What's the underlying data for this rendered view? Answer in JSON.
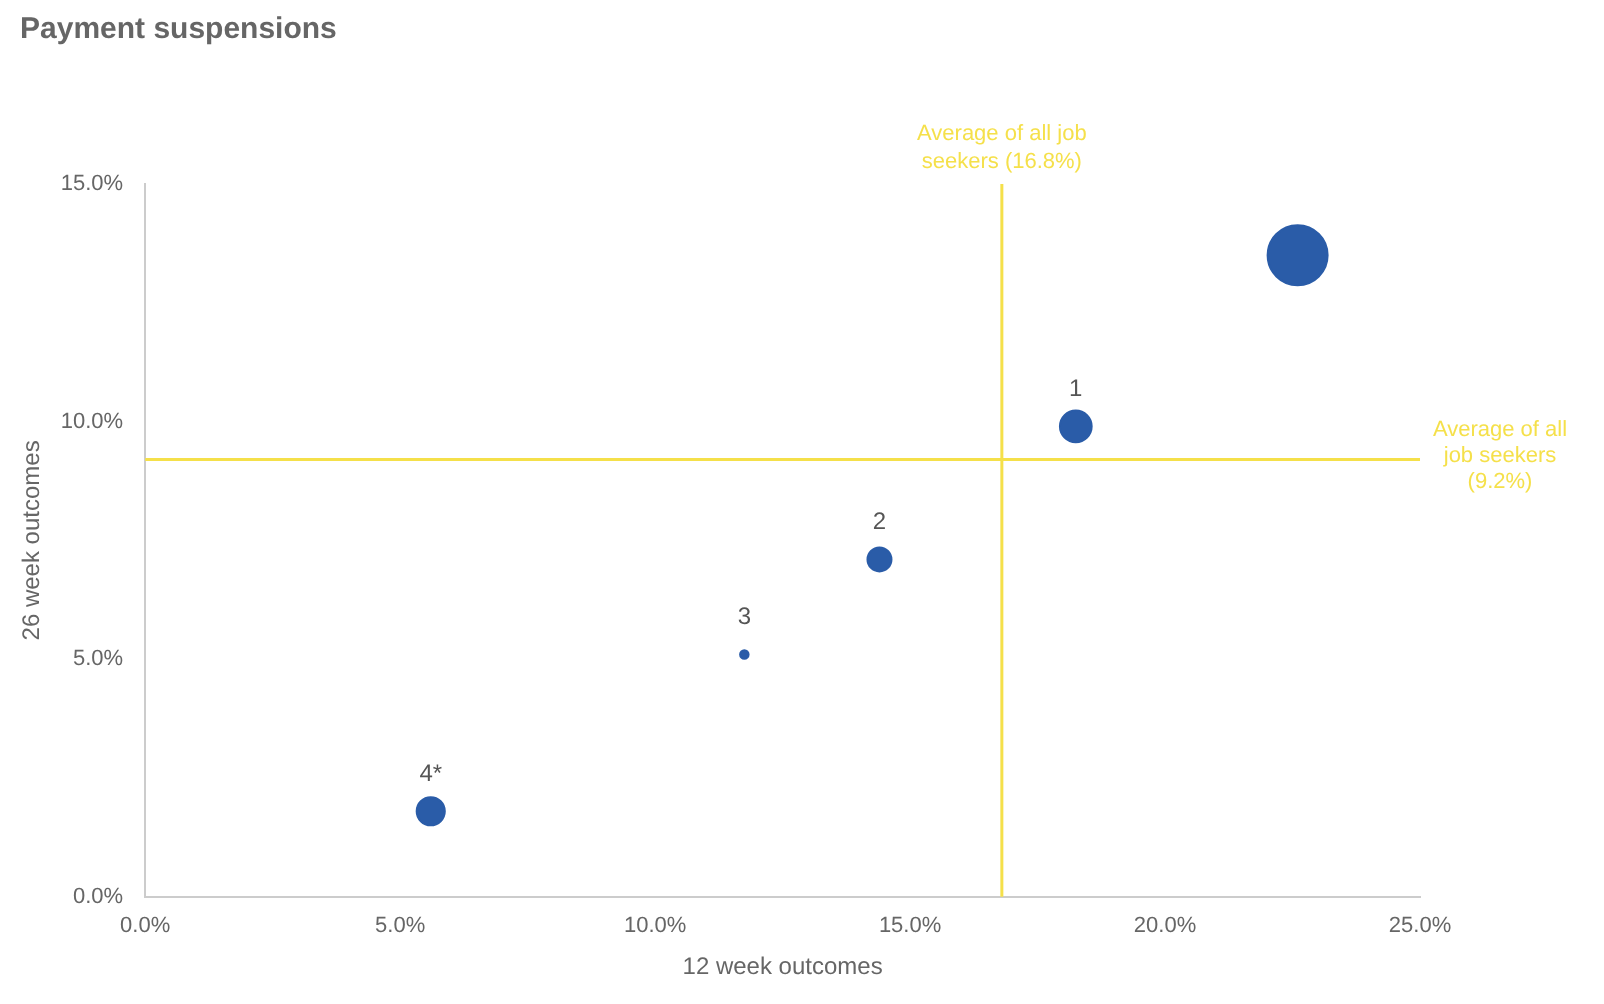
{
  "chart_data": {
    "type": "bubble",
    "title": "Payment suspensions",
    "xlabel": "12 week outcomes",
    "ylabel": "26 week outcomes",
    "x": [
      22.6,
      18.25,
      14.4,
      11.75,
      5.6
    ],
    "series": [
      {
        "color": "#2a5ca8",
        "values": [
          13.5,
          9.9,
          7.1,
          5.1,
          1.8
        ],
        "sizes": [
          1,
          0.28,
          0.16,
          0.02,
          0.22
        ]
      }
    ],
    "xlim": [
      0,
      25
    ],
    "xticks": [
      {
        "value": 0,
        "label": "0.0%"
      },
      {
        "value": 5,
        "label": "5.0%"
      },
      {
        "value": 10,
        "label": "10.0%"
      },
      {
        "value": 15,
        "label": "15.0%"
      },
      {
        "value": 20,
        "label": "20.0%"
      },
      {
        "value": 25,
        "label": "25.0%"
      }
    ],
    "ylim": [
      0,
      15
    ],
    "yticks": [
      {
        "value": 0,
        "label": "0.0%"
      },
      {
        "value": 5,
        "label": "5.0%"
      },
      {
        "value": 10,
        "label": "10.0%"
      },
      {
        "value": 15,
        "label": "15.0%"
      }
    ],
    "ref_lines": [
      {
        "axis": "x",
        "value": 16.8,
        "label": "Average of all job seekers (16.8%)",
        "color": "#f5e04a"
      },
      {
        "axis": "y",
        "value": 9.2,
        "label": "Average of all job seekers (9.2%)",
        "color": "#f5e04a"
      }
    ],
    "annotations": [
      {
        "text": "1",
        "x": 18.25,
        "y": 9.9
      },
      {
        "text": "2",
        "x": 14.4,
        "y": 7.1
      },
      {
        "text": "3",
        "x": 11.75,
        "y": 5.1
      },
      {
        "text": "4*",
        "x": 5.6,
        "y": 1.8
      }
    ],
    "grid": false,
    "legend": false
  }
}
